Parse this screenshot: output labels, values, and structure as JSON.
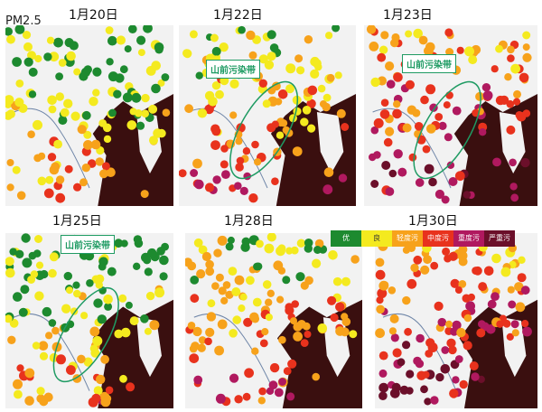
{
  "pollutant_label": "PM2.5",
  "callout_label": "山前污染带",
  "panels": [
    {
      "date": "1月20日",
      "callout": false
    },
    {
      "date": "1月22日",
      "callout": true
    },
    {
      "date": "1月23日",
      "callout": true
    },
    {
      "date": "1月25日",
      "callout": true
    },
    {
      "date": "1月28日",
      "callout": false
    },
    {
      "date": "1月30日",
      "callout": false
    }
  ],
  "legend": [
    {
      "label": "优",
      "color": "#1d8a2f"
    },
    {
      "label": "良",
      "color": "#f4ea1f"
    },
    {
      "label": "轻度污",
      "color": "#f7a21b"
    },
    {
      "label": "中度污",
      "color": "#e8321d"
    },
    {
      "label": "重度污",
      "color": "#b0195f"
    },
    {
      "label": "严重污",
      "color": "#6b0f2a"
    }
  ],
  "colors": {
    "land": "#f2f2f2",
    "sea": "#3a0f0f",
    "outline": "#1f9b63"
  }
}
